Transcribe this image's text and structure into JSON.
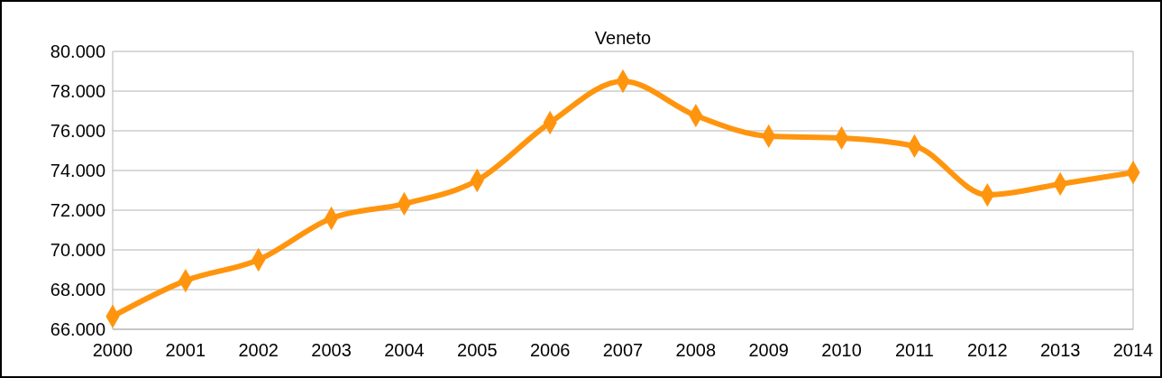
{
  "chart_data": {
    "type": "line",
    "title": "Veneto",
    "x": [
      2000,
      2001,
      2002,
      2003,
      2004,
      2005,
      2006,
      2007,
      2008,
      2009,
      2010,
      2011,
      2012,
      2013,
      2014
    ],
    "series": [
      {
        "color": "#ff950e",
        "values": [
          66650,
          68450,
          69500,
          71590,
          72320,
          73500,
          76410,
          78500,
          76770,
          75730,
          75640,
          75230,
          72770,
          73320,
          73900
        ]
      }
    ],
    "xlim": [
      2000,
      2014
    ],
    "xticks": [
      2000,
      2001,
      2002,
      2003,
      2004,
      2005,
      2006,
      2007,
      2008,
      2009,
      2010,
      2011,
      2012,
      2013,
      2014
    ],
    "ylim": [
      66000,
      80000
    ],
    "yticks": [
      {
        "value": 66000,
        "label": "66.000"
      },
      {
        "value": 68000,
        "label": "68.000"
      },
      {
        "value": 70000,
        "label": "70.000"
      },
      {
        "value": 72000,
        "label": "72.000"
      },
      {
        "value": 74000,
        "label": "74.000"
      },
      {
        "value": 76000,
        "label": "76.000"
      },
      {
        "value": 78000,
        "label": "78.000"
      },
      {
        "value": 80000,
        "label": "80.000"
      }
    ],
    "grid": "y",
    "marker": "diamond",
    "line_style": "solid"
  }
}
